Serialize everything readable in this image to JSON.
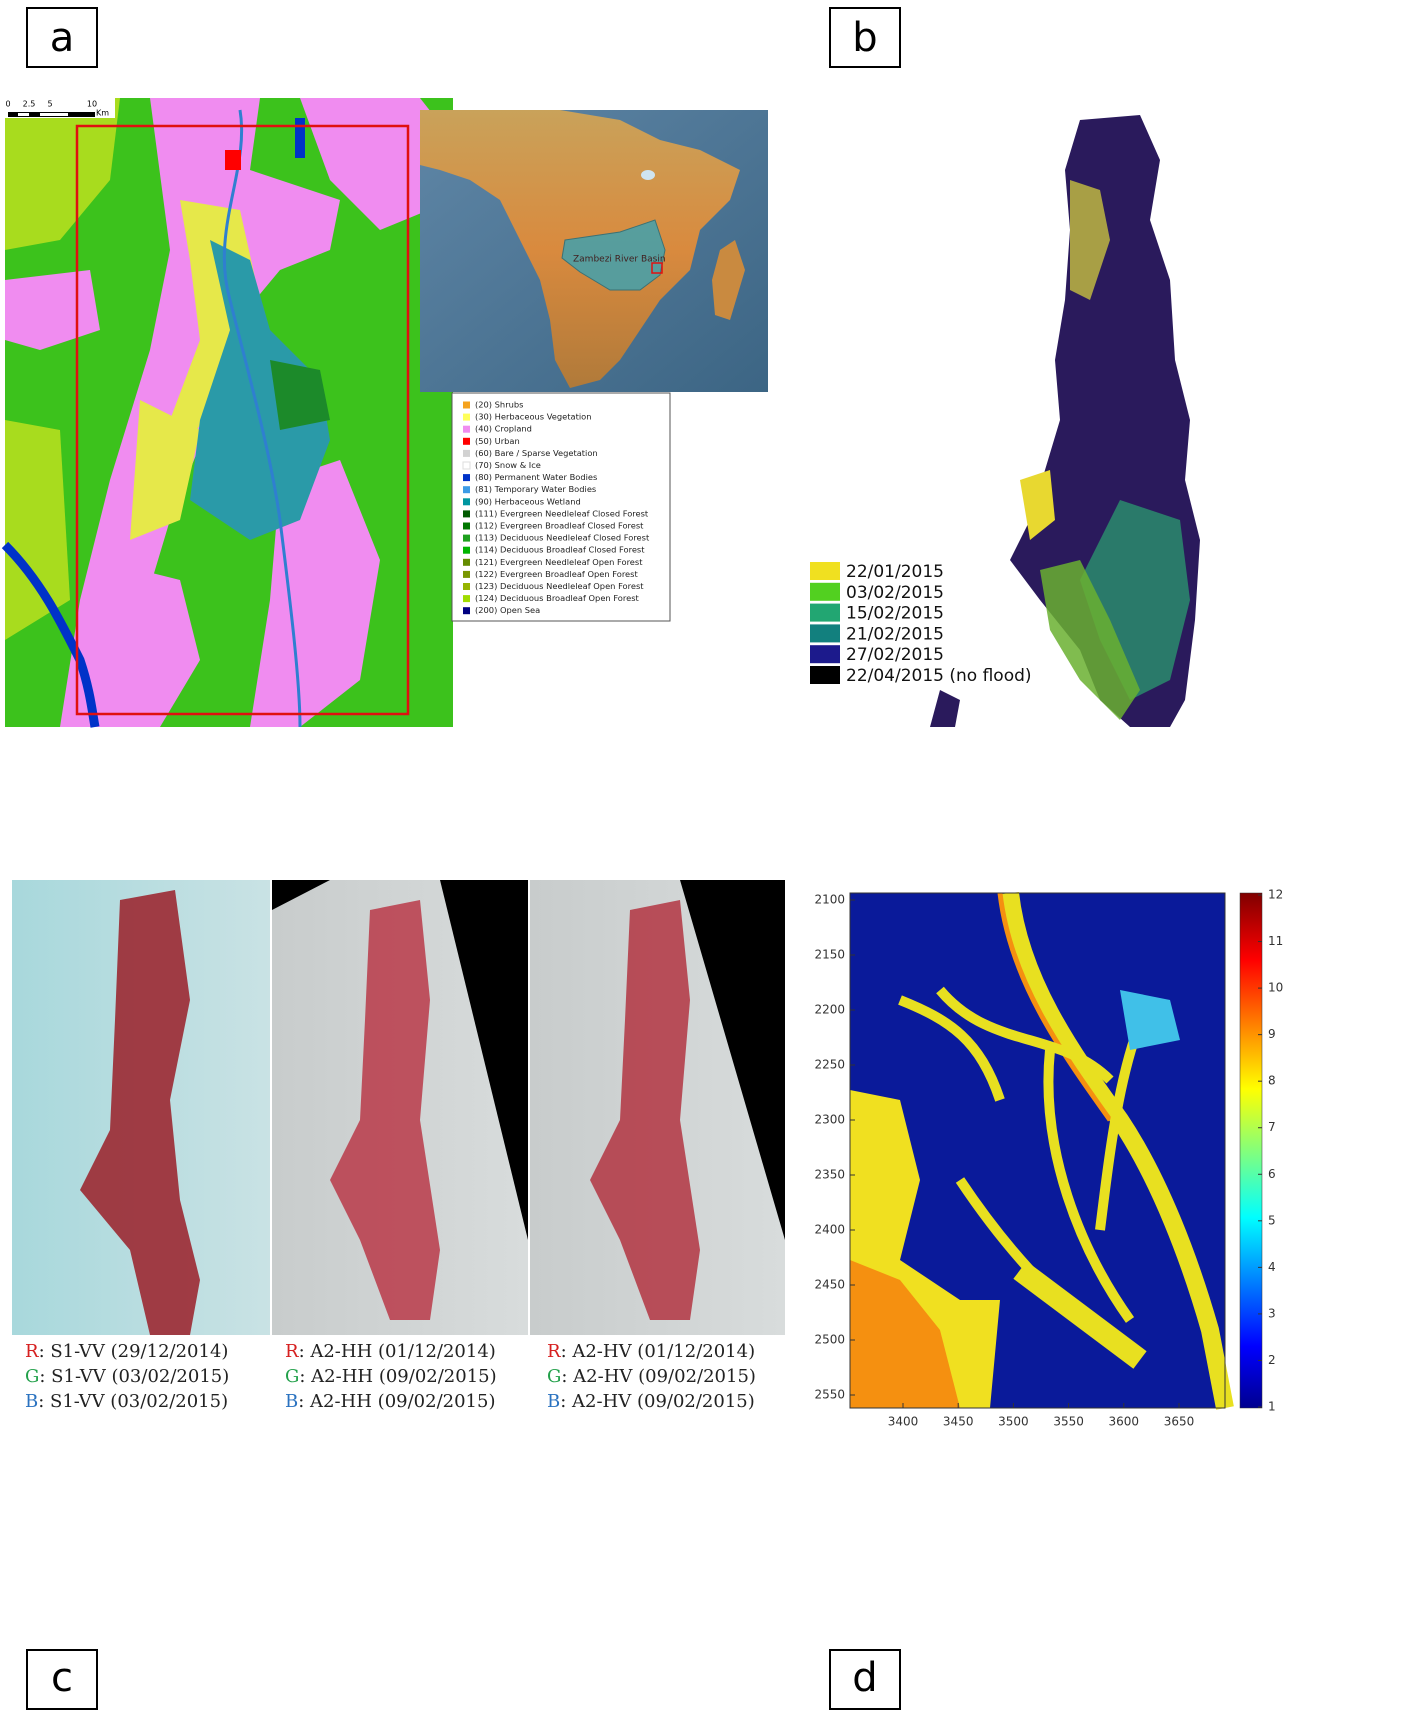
{
  "panels": [
    {
      "label": "a",
      "scale_bar": {
        "labels": [
          "0",
          "2.5",
          "5",
          "10"
        ],
        "unit": "Km"
      },
      "inset_label": "Zambezi River Basin",
      "legend": [
        {
          "text": "(20) Shrubs",
          "color": "#f5a31e"
        },
        {
          "text": "(30) Herbaceous Vegetation",
          "color": "#ffff5a"
        },
        {
          "text": "(40) Cropland",
          "color": "#f08cf0"
        },
        {
          "text": "(50) Urban",
          "color": "#ff0000"
        },
        {
          "text": "(60) Bare / Sparse Vegetation",
          "color": "#d2d2d2"
        },
        {
          "text": "(70) Snow & Ice",
          "color": "#ffffff"
        },
        {
          "text": "(80) Permanent Water Bodies",
          "color": "#0032c8"
        },
        {
          "text": "(81) Temporary Water Bodies",
          "color": "#3c9be6"
        },
        {
          "text": "(90) Herbaceous Wetland",
          "color": "#0096a0"
        },
        {
          "text": "(111) Evergreen Needleleaf Closed Forest",
          "color": "#005a00"
        },
        {
          "text": "(112) Evergreen Broadleaf Closed Forest",
          "color": "#007800"
        },
        {
          "text": "(113) Deciduous Needleleaf Closed Forest",
          "color": "#1ea01e"
        },
        {
          "text": "(114) Deciduous Broadleaf Closed Forest",
          "color": "#00b400"
        },
        {
          "text": "(121) Evergreen Needleleaf Open Forest",
          "color": "#648c00"
        },
        {
          "text": "(122) Evergreen Broadleaf Open Forest",
          "color": "#789600"
        },
        {
          "text": "(123) Deciduous Needleleaf Open Forest",
          "color": "#96b400"
        },
        {
          "text": "(124) Deciduous Broadleaf Open Forest",
          "color": "#a0dc00"
        },
        {
          "text": "(200) Open Sea",
          "color": "#000080"
        }
      ]
    },
    {
      "label": "b",
      "legend": [
        {
          "text": "22/01/2015",
          "color": "#f0e020"
        },
        {
          "text": "03/02/2015",
          "color": "#52d020"
        },
        {
          "text": "15/02/2015",
          "color": "#22a672"
        },
        {
          "text": "21/02/2015",
          "color": "#12807e"
        },
        {
          "text": "27/02/2015",
          "color": "#1c1a8c"
        },
        {
          "text": "22/04/2015 (no flood)",
          "color": "#000000"
        }
      ]
    },
    {
      "label": "c",
      "captions": [
        [
          {
            "channel": "R",
            "color": "#d62020",
            "text": ": S1-VV (29/12/2014)"
          },
          {
            "channel": "G",
            "color": "#22a04a",
            "text": ": S1-VV (03/02/2015)"
          },
          {
            "channel": "B",
            "color": "#2a72c0",
            "text": ": S1-VV (03/02/2015)"
          }
        ],
        [
          {
            "channel": "R",
            "color": "#d62020",
            "text": ": A2-HH (01/12/2014)"
          },
          {
            "channel": "G",
            "color": "#22a04a",
            "text": ": A2-HH (09/02/2015)"
          },
          {
            "channel": "B",
            "color": "#2a72c0",
            "text": ": A2-HH (09/02/2015)"
          }
        ],
        [
          {
            "channel": "R",
            "color": "#d62020",
            "text": ": A2-HV (01/12/2014)"
          },
          {
            "channel": "G",
            "color": "#22a04a",
            "text": ": A2-HV (09/02/2015)"
          },
          {
            "channel": "B",
            "color": "#2a72c0",
            "text": ": A2-HV (09/02/2015)"
          }
        ]
      ]
    },
    {
      "label": "d",
      "yticks": [
        2100,
        2150,
        2200,
        2250,
        2300,
        2350,
        2400,
        2450,
        2500,
        2550
      ],
      "xticks": [
        3400,
        3450,
        3500,
        3550,
        3600,
        3650
      ],
      "colorbar_ticks": [
        1,
        2,
        3,
        4,
        5,
        6,
        7,
        8,
        9,
        10,
        11,
        12
      ]
    }
  ]
}
